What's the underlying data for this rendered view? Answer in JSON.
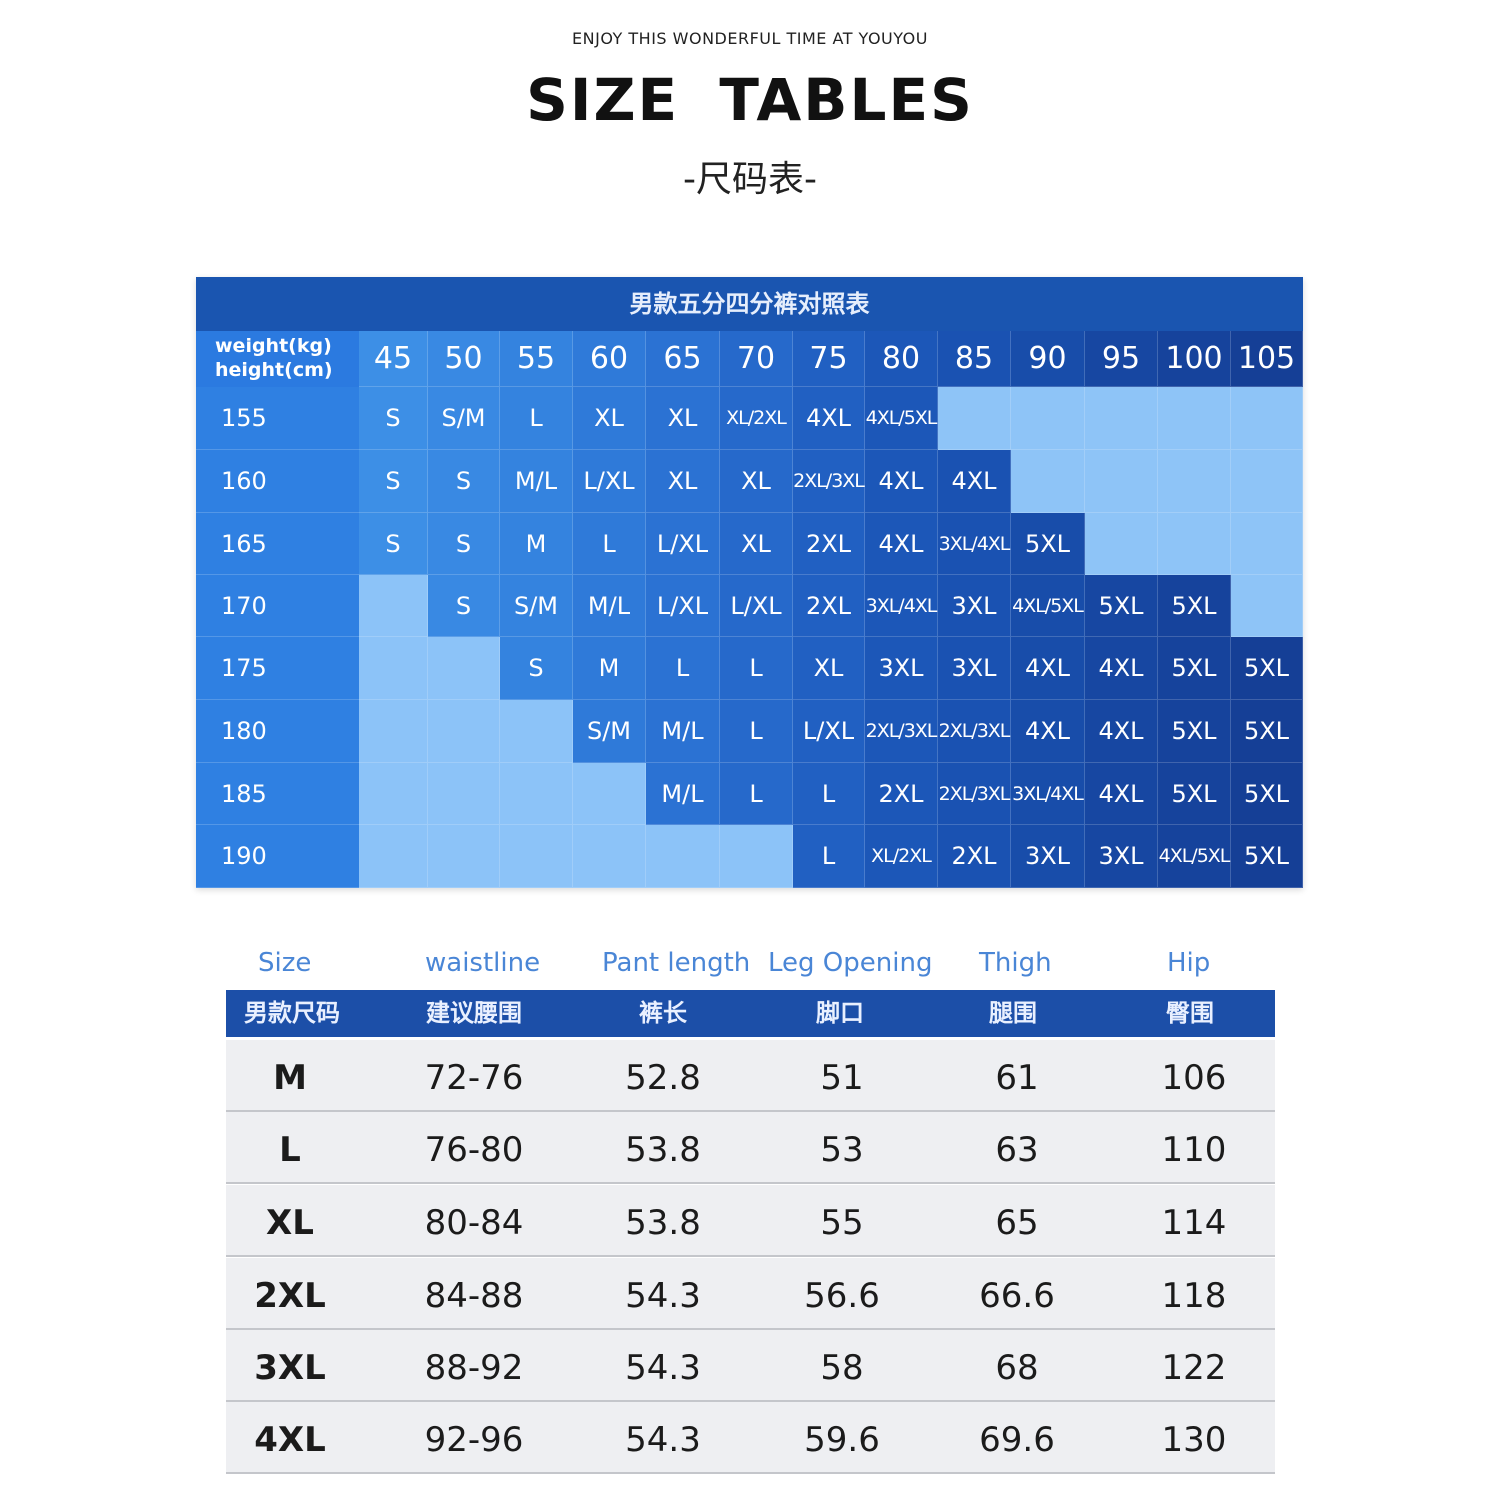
{
  "header": {
    "tagline": "ENJOY THIS WONDERFUL TIME AT  YOUYOU",
    "title": "SIZE  TABLES",
    "subtitle": "-尺码表-"
  },
  "chart_data": [
    {
      "type": "table",
      "title": "男款五分四分裤对照表",
      "corner_label": [
        "weight(kg)",
        "height(cm)"
      ],
      "columns": [
        "45",
        "50",
        "55",
        "60",
        "65",
        "70",
        "75",
        "80",
        "85",
        "90",
        "95",
        "100",
        "105"
      ],
      "rows": [
        {
          "height": "155",
          "cells": [
            "S",
            "S/M",
            "L",
            "XL",
            "XL",
            "XL/2XL",
            "4XL",
            "4XL/5XL",
            "",
            "",
            "",
            "",
            ""
          ]
        },
        {
          "height": "160",
          "cells": [
            "S",
            "S",
            "M/L",
            "L/XL",
            "XL",
            "XL",
            "2XL/3XL",
            "4XL",
            "4XL",
            "",
            "",
            "",
            ""
          ]
        },
        {
          "height": "165",
          "cells": [
            "S",
            "S",
            "M",
            "L",
            "L/XL",
            "XL",
            "2XL",
            "4XL",
            "3XL/4XL",
            "5XL",
            "",
            "",
            ""
          ]
        },
        {
          "height": "170",
          "cells": [
            "",
            "S",
            "S/M",
            "M/L",
            "L/XL",
            "L/XL",
            "2XL",
            "3XL/4XL",
            "3XL",
            "4XL/5XL",
            "5XL",
            "5XL",
            ""
          ]
        },
        {
          "height": "175",
          "cells": [
            "",
            "",
            "S",
            "M",
            "L",
            "L",
            "XL",
            "3XL",
            "3XL",
            "4XL",
            "4XL",
            "5XL",
            "5XL"
          ]
        },
        {
          "height": "180",
          "cells": [
            "",
            "",
            "",
            "S/M",
            "M/L",
            "L",
            "L/XL",
            "2XL/3XL",
            "2XL/3XL",
            "4XL",
            "4XL",
            "5XL",
            "5XL"
          ]
        },
        {
          "height": "185",
          "cells": [
            "",
            "",
            "",
            "",
            "M/L",
            "L",
            "L",
            "2XL",
            "2XL/3XL",
            "3XL/4XL",
            "4XL",
            "5XL",
            "5XL"
          ]
        },
        {
          "height": "190",
          "cells": [
            "",
            "",
            "",
            "",
            "",
            "",
            "L",
            "XL/2XL",
            "2XL",
            "3XL",
            "3XL",
            "4XL/5XL",
            "5XL"
          ]
        }
      ]
    },
    {
      "type": "table",
      "columns_en": [
        "Size",
        "waistline",
        "Pant length",
        "Leg Opening",
        "Thigh",
        "Hip"
      ],
      "columns_cn": [
        "男款尺码",
        "建议腰围",
        "裤长",
        "脚口",
        "腿围",
        "臀围"
      ],
      "rows": [
        [
          "M",
          "72-76",
          "52.8",
          "51",
          "61",
          "106"
        ],
        [
          "L",
          "76-80",
          "53.8",
          "53",
          "63",
          "110"
        ],
        [
          "XL",
          "80-84",
          "53.8",
          "55",
          "65",
          "114"
        ],
        [
          "2XL",
          "84-88",
          "54.3",
          "56.6",
          "66.6",
          "118"
        ],
        [
          "3XL",
          "88-92",
          "54.3",
          "58",
          "68",
          "122"
        ],
        [
          "4XL",
          "92-96",
          "54.3",
          "59.6",
          "69.6",
          "130"
        ]
      ]
    }
  ],
  "colors": {
    "grid_dark": "#1a55b0",
    "grid_light": "#8cc3f8",
    "table_header": "#1c4fa8",
    "table_row": "#eeeff2",
    "column_en_text": "#4a86d6"
  }
}
